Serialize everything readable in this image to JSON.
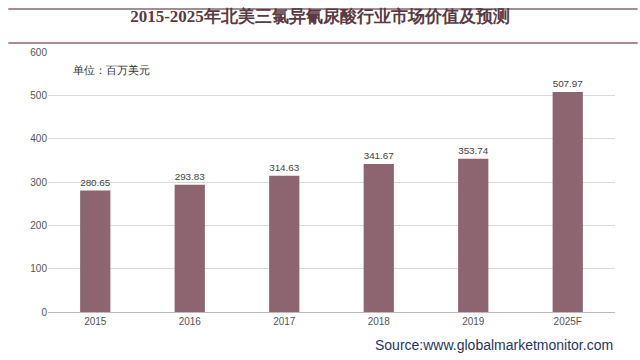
{
  "chart_data": {
    "type": "bar",
    "title": "2015-2025年北美三氯异氰尿酸行业市场价值及预测",
    "categories": [
      "2015",
      "2016",
      "2017",
      "2018",
      "2019",
      "2025F"
    ],
    "values": [
      280.65,
      293.83,
      314.63,
      341.67,
      353.74,
      507.97
    ],
    "color": "#8c6570",
    "ylim": [
      0,
      600
    ],
    "yticks": [
      0,
      100,
      200,
      300,
      400,
      500,
      600
    ],
    "grid": true,
    "data_labels": true,
    "annotations": [
      "单位：百万美元",
      "Source:www.globalmarketmonitor.com"
    ]
  }
}
